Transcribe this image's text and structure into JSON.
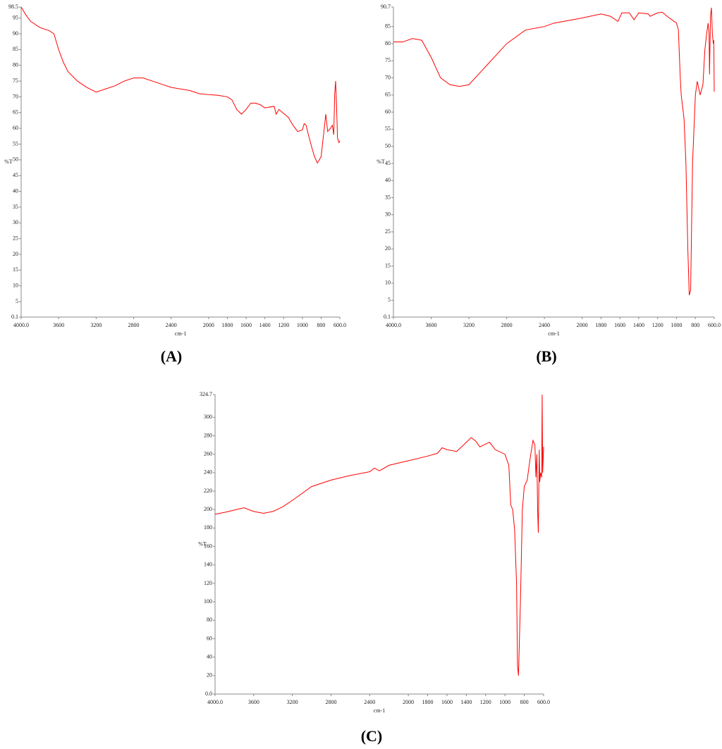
{
  "chart_data": [
    {
      "type": "line",
      "caption": "(A)",
      "xlabel": "cm-1",
      "ylabel": "%T",
      "xlim": [
        4000,
        600
      ],
      "ylim": [
        0.1,
        98.5
      ],
      "xticks": [
        {
          "value": 4000,
          "label": "4000.0"
        },
        3600,
        3200,
        2800,
        2400,
        2000,
        1800,
        1600,
        1400,
        1200,
        1000,
        800,
        {
          "value": 600,
          "label": "600.0"
        }
      ],
      "yticks": [
        0.1,
        5,
        10,
        15,
        20,
        25,
        30,
        35,
        40,
        45,
        50,
        55,
        60,
        65,
        70,
        75,
        80,
        85,
        90,
        95,
        98.5
      ],
      "series": [
        {
          "color": "#ff0000",
          "x": [
            4000,
            3950,
            3900,
            3800,
            3700,
            3650,
            3600,
            3550,
            3500,
            3400,
            3300,
            3200,
            3100,
            3000,
            2900,
            2800,
            2700,
            2600,
            2500,
            2400,
            2300,
            2200,
            2100,
            2000,
            1900,
            1800,
            1750,
            1700,
            1650,
            1600,
            1550,
            1500,
            1450,
            1400,
            1300,
            1280,
            1250,
            1150,
            1100,
            1050,
            1000,
            980,
            960,
            940,
            900,
            870,
            840,
            800,
            770,
            750,
            730,
            700,
            680,
            665,
            655,
            645,
            635,
            625,
            610,
            600
          ],
          "values": [
            98.5,
            96,
            94,
            92,
            91,
            90,
            85,
            81,
            78,
            75,
            73,
            71.5,
            72.5,
            73.5,
            75,
            76,
            76,
            75,
            74,
            73,
            72.5,
            72,
            71,
            70.7,
            70.5,
            70,
            69,
            66,
            64.5,
            66,
            68,
            68,
            67.5,
            66.5,
            67,
            64.5,
            66,
            63.5,
            61,
            59,
            59.5,
            61.5,
            61,
            58.5,
            54,
            51,
            49,
            51,
            59,
            64.5,
            59,
            60,
            61,
            58,
            71,
            75,
            67,
            57,
            55.5,
            56
          ]
        }
      ]
    },
    {
      "type": "line",
      "caption": "(B)",
      "xlabel": "cm-1",
      "ylabel": "%T",
      "xlim": [
        4000,
        600
      ],
      "ylim": [
        0.1,
        90.7
      ],
      "xticks": [
        {
          "value": 4000,
          "label": "4000.0"
        },
        3600,
        3200,
        2800,
        2400,
        2000,
        1800,
        1600,
        1400,
        1200,
        1000,
        800,
        {
          "value": 600,
          "label": "600.0"
        }
      ],
      "yticks": [
        0.1,
        5,
        10,
        15,
        20,
        25,
        30,
        35,
        40,
        45,
        50,
        55,
        60,
        65,
        70,
        75,
        80,
        85,
        90.7
      ],
      "series": [
        {
          "color": "#ff0000",
          "x": [
            4000,
            3900,
            3800,
            3700,
            3600,
            3500,
            3400,
            3300,
            3200,
            3100,
            3000,
            2900,
            2800,
            2600,
            2400,
            2300,
            2100,
            2000,
            1800,
            1700,
            1620,
            1580,
            1500,
            1450,
            1400,
            1300,
            1280,
            1200,
            1150,
            1100,
            1000,
            980,
            960,
            950,
            920,
            900,
            880,
            865,
            850,
            830,
            800,
            780,
            750,
            720,
            700,
            680,
            665,
            655,
            650,
            640,
            630,
            620,
            610,
            605,
            600
          ],
          "values": [
            80.5,
            80.5,
            81.5,
            81,
            76,
            70,
            68,
            67.5,
            68,
            71,
            74,
            77,
            80,
            84,
            85,
            86,
            87,
            87.5,
            88.7,
            88,
            86.5,
            89,
            89,
            87,
            89,
            88.7,
            88,
            89,
            89.2,
            88,
            86,
            84,
            70,
            65,
            58,
            45,
            20,
            6.5,
            8,
            45,
            65,
            69,
            65,
            68,
            78,
            83,
            86,
            83,
            71,
            88,
            90.5,
            83,
            80,
            81,
            66
          ]
        }
      ]
    },
    {
      "type": "line",
      "caption": "(C)",
      "xlabel": "cm-1",
      "ylabel": "%T",
      "xlim": [
        4000,
        600
      ],
      "ylim": [
        0,
        324.7
      ],
      "xticks": [
        {
          "value": 4000,
          "label": "4000.0"
        },
        3600,
        3200,
        2800,
        2400,
        2000,
        1800,
        1600,
        1400,
        1200,
        1000,
        800,
        {
          "value": 600,
          "label": "600.0"
        }
      ],
      "yticks": [
        {
          "value": 0,
          "label": "0.0"
        },
        20,
        40,
        60,
        80,
        100,
        120,
        140,
        160,
        180,
        200,
        220,
        240,
        260,
        280,
        300,
        324.7
      ],
      "series": [
        {
          "color": "#ff0000",
          "x": [
            4000,
            3900,
            3700,
            3600,
            3500,
            3400,
            3300,
            3200,
            3000,
            2800,
            2600,
            2400,
            2350,
            2300,
            2200,
            2000,
            1800,
            1700,
            1650,
            1600,
            1500,
            1450,
            1350,
            1300,
            1260,
            1200,
            1160,
            1100,
            1000,
            960,
            940,
            920,
            900,
            880,
            870,
            860,
            840,
            820,
            800,
            770,
            740,
            710,
            690,
            680,
            670,
            662,
            655,
            645,
            640,
            630,
            620,
            615,
            610,
            600
          ],
          "values": [
            195,
            197,
            202,
            198,
            196,
            198,
            203,
            210,
            225,
            232,
            237,
            241,
            245,
            242,
            248,
            253,
            258,
            261,
            267,
            265,
            263,
            268,
            278,
            274,
            268,
            271,
            273,
            265,
            260,
            248,
            205,
            200,
            178,
            120,
            30,
            20,
            100,
            200,
            225,
            232,
            255,
            275,
            270,
            235,
            260,
            200,
            175,
            265,
            230,
            240,
            235,
            324.7,
            240,
            268
          ]
        }
      ]
    }
  ]
}
